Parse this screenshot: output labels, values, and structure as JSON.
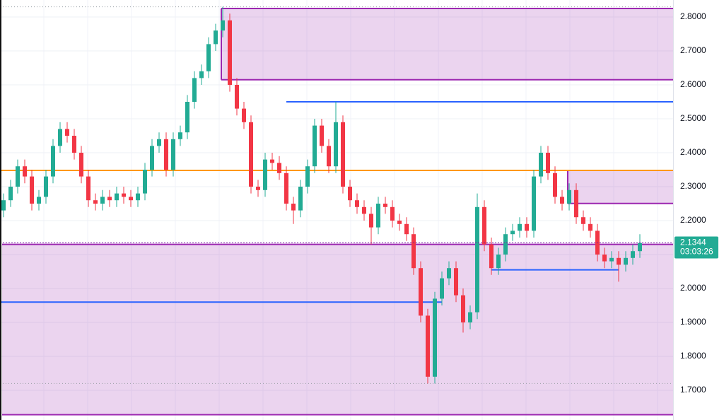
{
  "chart_data": {
    "type": "candlestick",
    "open": [
      2.23,
      2.26,
      2.3,
      2.36,
      2.33,
      2.25,
      2.27,
      2.33,
      2.42,
      2.47,
      2.45,
      2.4,
      2.33,
      2.26,
      2.25,
      2.27,
      2.26,
      2.28,
      2.27,
      2.26,
      2.28,
      2.35,
      2.42,
      2.44,
      2.35,
      2.44,
      2.46,
      2.55,
      2.62,
      2.64,
      2.72,
      2.76,
      2.79,
      2.6,
      2.53,
      2.49,
      2.3,
      2.29,
      2.38,
      2.37,
      2.34,
      2.25,
      2.23,
      2.3,
      2.36,
      2.48,
      2.42,
      2.36,
      2.49,
      2.3,
      2.26,
      2.24,
      2.22,
      2.18,
      2.25,
      2.24,
      2.2,
      2.19,
      2.16,
      2.06,
      1.92,
      1.74,
      1.97,
      2.03,
      2.06,
      1.98,
      1.9,
      1.93,
      2.24,
      2.13,
      2.06,
      2.1,
      2.16,
      2.17,
      2.19,
      2.17,
      2.33,
      2.4,
      2.34,
      2.27,
      2.25,
      2.29,
      2.21,
      2.19,
      2.17,
      2.1,
      2.08,
      2.09,
      2.07,
      2.09,
      2.11
    ],
    "high": [
      2.28,
      2.32,
      2.38,
      2.38,
      2.35,
      2.29,
      2.35,
      2.44,
      2.49,
      2.49,
      2.47,
      2.42,
      2.35,
      2.28,
      2.29,
      2.29,
      2.3,
      2.3,
      2.29,
      2.3,
      2.37,
      2.44,
      2.46,
      2.46,
      2.46,
      2.48,
      2.57,
      2.64,
      2.66,
      2.74,
      2.78,
      2.83,
      2.81,
      2.62,
      2.55,
      2.51,
      2.32,
      2.4,
      2.4,
      2.39,
      2.36,
      2.27,
      2.32,
      2.38,
      2.5,
      2.5,
      2.44,
      2.55,
      2.51,
      2.32,
      2.28,
      2.26,
      2.24,
      2.27,
      2.27,
      2.26,
      2.22,
      2.21,
      2.18,
      2.08,
      1.94,
      1.99,
      2.05,
      2.08,
      2.08,
      2.0,
      1.95,
      2.28,
      2.26,
      2.15,
      2.12,
      2.18,
      2.19,
      2.21,
      2.21,
      2.35,
      2.42,
      2.42,
      2.36,
      2.29,
      2.31,
      2.31,
      2.23,
      2.21,
      2.19,
      2.12,
      2.11,
      2.11,
      2.11,
      2.13,
      2.16
    ],
    "low": [
      2.21,
      2.24,
      2.28,
      2.31,
      2.23,
      2.23,
      2.25,
      2.31,
      2.4,
      2.43,
      2.38,
      2.31,
      2.24,
      2.23,
      2.23,
      2.24,
      2.24,
      2.25,
      2.24,
      2.24,
      2.26,
      2.33,
      2.4,
      2.33,
      2.33,
      2.42,
      2.44,
      2.53,
      2.6,
      2.62,
      2.7,
      2.74,
      2.58,
      2.51,
      2.47,
      2.28,
      2.27,
      2.27,
      2.35,
      2.32,
      2.23,
      2.19,
      2.21,
      2.28,
      2.34,
      2.4,
      2.34,
      2.34,
      2.28,
      2.24,
      2.22,
      2.2,
      2.13,
      2.16,
      2.22,
      2.18,
      2.17,
      2.14,
      2.04,
      1.9,
      1.72,
      1.72,
      1.95,
      2.01,
      1.96,
      1.87,
      1.88,
      1.91,
      2.11,
      2.04,
      2.04,
      2.08,
      2.14,
      2.15,
      2.15,
      2.15,
      2.31,
      2.32,
      2.25,
      2.23,
      2.23,
      2.19,
      2.17,
      2.15,
      2.08,
      2.06,
      2.06,
      2.02,
      2.05,
      2.07,
      2.09
    ],
    "close": [
      2.26,
      2.3,
      2.36,
      2.33,
      2.25,
      2.27,
      2.33,
      2.42,
      2.47,
      2.45,
      2.4,
      2.33,
      2.26,
      2.25,
      2.27,
      2.26,
      2.28,
      2.27,
      2.26,
      2.28,
      2.35,
      2.42,
      2.44,
      2.35,
      2.44,
      2.46,
      2.55,
      2.62,
      2.64,
      2.72,
      2.76,
      2.79,
      2.6,
      2.53,
      2.49,
      2.3,
      2.29,
      2.38,
      2.37,
      2.34,
      2.25,
      2.23,
      2.3,
      2.36,
      2.48,
      2.42,
      2.36,
      2.49,
      2.3,
      2.26,
      2.24,
      2.22,
      2.18,
      2.25,
      2.24,
      2.2,
      2.19,
      2.16,
      2.06,
      1.92,
      1.74,
      1.97,
      2.03,
      2.06,
      1.98,
      1.9,
      1.93,
      2.24,
      2.13,
      2.06,
      2.1,
      2.16,
      2.17,
      2.19,
      2.17,
      2.33,
      2.4,
      2.34,
      2.27,
      2.25,
      2.29,
      2.21,
      2.19,
      2.17,
      2.1,
      2.08,
      2.09,
      2.07,
      2.09,
      2.11,
      2.134
    ],
    "up_color": "#22ab94",
    "down_color": "#f23645",
    "ylim": [
      1.6125,
      2.85
    ],
    "yticks": [
      {
        "value": 1.7,
        "label": "1.7000"
      },
      {
        "value": 1.8,
        "label": "1.8000"
      },
      {
        "value": 1.9,
        "label": "1.9000"
      },
      {
        "value": 2.0,
        "label": "2.0000"
      },
      {
        "value": 2.1,
        "label": "2.1000"
      },
      {
        "value": 2.2,
        "label": "2.2000"
      },
      {
        "value": 2.3,
        "label": "2.3000"
      },
      {
        "value": 2.4,
        "label": "2.4000"
      },
      {
        "value": 2.5,
        "label": "2.5000"
      },
      {
        "value": 2.6,
        "label": "2.6000"
      },
      {
        "value": 2.7,
        "label": "2.7000"
      },
      {
        "value": 2.8,
        "label": "2.8000"
      }
    ],
    "grid": true,
    "zones": [
      {
        "top": 2.825,
        "bottom": 2.615,
        "start": 31,
        "color": "#9c27b0"
      },
      {
        "top": 2.348,
        "bottom": 2.2505,
        "start": 80,
        "color": "#9c27b0"
      },
      {
        "top": 2.13,
        "bottom": 1.628,
        "start": 0,
        "color": "#9c27b0"
      }
    ],
    "lines": [
      {
        "value": 2.55,
        "start": 40,
        "color": "#2962ff"
      },
      {
        "value": 2.348,
        "start": 0,
        "color": "#ff9800"
      },
      {
        "value": 1.96,
        "start": 0,
        "end": 62,
        "color": "#2962ff"
      },
      {
        "value": 2.055,
        "start": 69,
        "end": 87,
        "color": "#2962ff"
      }
    ],
    "extreme_markers": [
      2.83,
      1.72
    ],
    "last_price": {
      "value": 2.1344,
      "label": "2.1344"
    },
    "countdown": "03:03:26"
  }
}
